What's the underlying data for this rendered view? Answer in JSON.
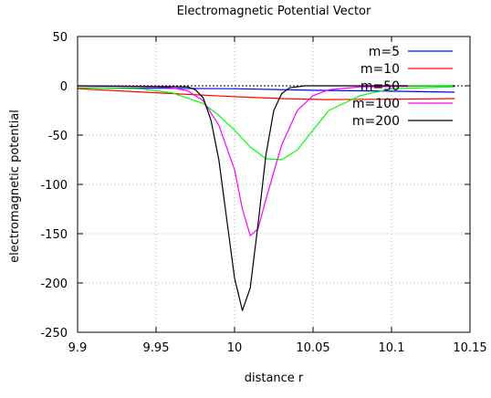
{
  "chart_data": {
    "type": "line",
    "title": "Electromagnetic Potential Vector",
    "xlabel": "distance r",
    "ylabel": "electromagnetic potential",
    "xlim": [
      9.9,
      10.15
    ],
    "ylim": [
      -250,
      50
    ],
    "xticks": [
      9.9,
      9.95,
      10,
      10.05,
      10.1,
      10.15
    ],
    "xtick_labels": [
      "9.9",
      "9.95",
      "10",
      "10.05",
      "10.1",
      "10.15"
    ],
    "yticks": [
      -250,
      -200,
      -150,
      -100,
      -50,
      0,
      50
    ],
    "ytick_labels": [
      "-250",
      "-200",
      "-150",
      "-100",
      "-50",
      "0",
      "50"
    ],
    "grid": true,
    "legend_position": "top-right",
    "reference_line": {
      "y": 0,
      "style": "dotted"
    },
    "series": [
      {
        "name": "m=5",
        "color": "#0000ff",
        "x": [
          9.9,
          9.95,
          10.0,
          10.05,
          10.1,
          10.14
        ],
        "y": [
          -2,
          -2.5,
          -3,
          -4.5,
          -5.5,
          -6.5
        ]
      },
      {
        "name": "m=10",
        "color": "#ff0000",
        "x": [
          9.9,
          9.95,
          10.0,
          10.03,
          10.06,
          10.1,
          10.14
        ],
        "y": [
          -3,
          -7,
          -11,
          -13,
          -14,
          -13.5,
          -13
        ]
      },
      {
        "name": "m=50",
        "color": "#00ff00",
        "x": [
          9.9,
          9.94,
          9.96,
          9.98,
          9.99,
          10.0,
          10.01,
          10.02,
          10.03,
          10.04,
          10.05,
          10.06,
          10.08,
          10.1,
          10.14
        ],
        "y": [
          -2,
          -3,
          -7,
          -18,
          -30,
          -45,
          -62,
          -74,
          -75,
          -65,
          -45,
          -25,
          -10,
          -3,
          -1
        ]
      },
      {
        "name": "m=100",
        "color": "#ff00ff",
        "x": [
          9.9,
          9.95,
          9.96,
          9.97,
          9.98,
          9.99,
          10.0,
          10.005,
          10.01,
          10.015,
          10.02,
          10.03,
          10.04,
          10.05,
          10.06,
          10.08,
          10.14
        ],
        "y": [
          0,
          -1,
          -2,
          -5,
          -15,
          -40,
          -85,
          -125,
          -152,
          -145,
          -115,
          -60,
          -25,
          -10,
          -4,
          -1,
          0
        ]
      },
      {
        "name": "m=200",
        "color": "#000000",
        "x": [
          9.9,
          9.97,
          9.975,
          9.98,
          9.985,
          9.99,
          9.995,
          10.0,
          10.005,
          10.01,
          10.015,
          10.02,
          10.025,
          10.03,
          10.035,
          10.045,
          10.14
        ],
        "y": [
          0,
          -1,
          -4,
          -12,
          -35,
          -75,
          -135,
          -195,
          -228,
          -205,
          -140,
          -70,
          -25,
          -8,
          -2,
          0,
          0
        ]
      }
    ]
  }
}
